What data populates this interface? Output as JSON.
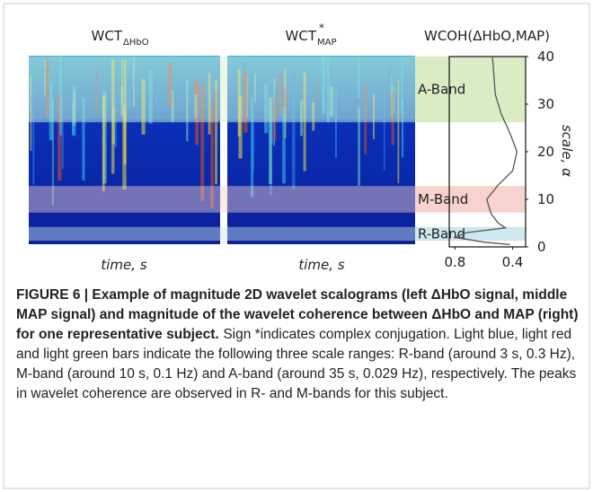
{
  "panels": [
    {
      "title": "WCT",
      "subscript": "ΔHbO",
      "xlabel": "time, s"
    },
    {
      "title": "WCT",
      "superscript": "*",
      "subscript": "MAP",
      "xlabel": "time, s"
    }
  ],
  "chart_data": {
    "type": "line",
    "title": "WCOH(ΔHbO,MAP)",
    "ylabel": "scale, α",
    "ylim": [
      0,
      40
    ],
    "yticks": [
      0,
      10,
      20,
      30,
      40
    ],
    "xlim": [
      0.84,
      0.31
    ],
    "xticks": [
      0.8,
      0.4
    ],
    "scale": [
      0.5,
      1,
      2,
      3,
      4,
      5,
      7,
      10,
      13,
      16,
      20,
      24,
      28,
      32,
      36,
      40
    ],
    "coherence": [
      0.42,
      0.6,
      0.8,
      0.72,
      0.45,
      0.5,
      0.55,
      0.58,
      0.5,
      0.4,
      0.37,
      0.42,
      0.48,
      0.52,
      0.53,
      0.54
    ],
    "color": "#555555",
    "bands": [
      {
        "name": "A-Band",
        "range": [
          26.2,
          40
        ],
        "color": "#d9ecc4"
      },
      {
        "name": "M-Band",
        "range": [
          7.2,
          12.8
        ],
        "color": "#f6d3cc"
      },
      {
        "name": "R-Band",
        "range": [
          1.3,
          4.2
        ],
        "color": "#cde8ee"
      }
    ]
  },
  "caption": {
    "bold": "FIGURE 6 | Example of magnitude 2D wavelet scalograms (left ΔHbO signal, middle MAP signal) and magnitude of the wavelet coherence between ΔHbO and MAP (right) for one representative subject.",
    "text": "Sign *indicates complex conjugation. Light blue, light red and light green bars indicate the following three scale ranges: R-band (around 3 s, 0.3 Hz), M-band (around 10 s, 0.1 Hz) and A-band (around 35 s, 0.029 Hz), respectively. The peaks in wavelet coherence are observed in R- and M-bands for this subject."
  }
}
